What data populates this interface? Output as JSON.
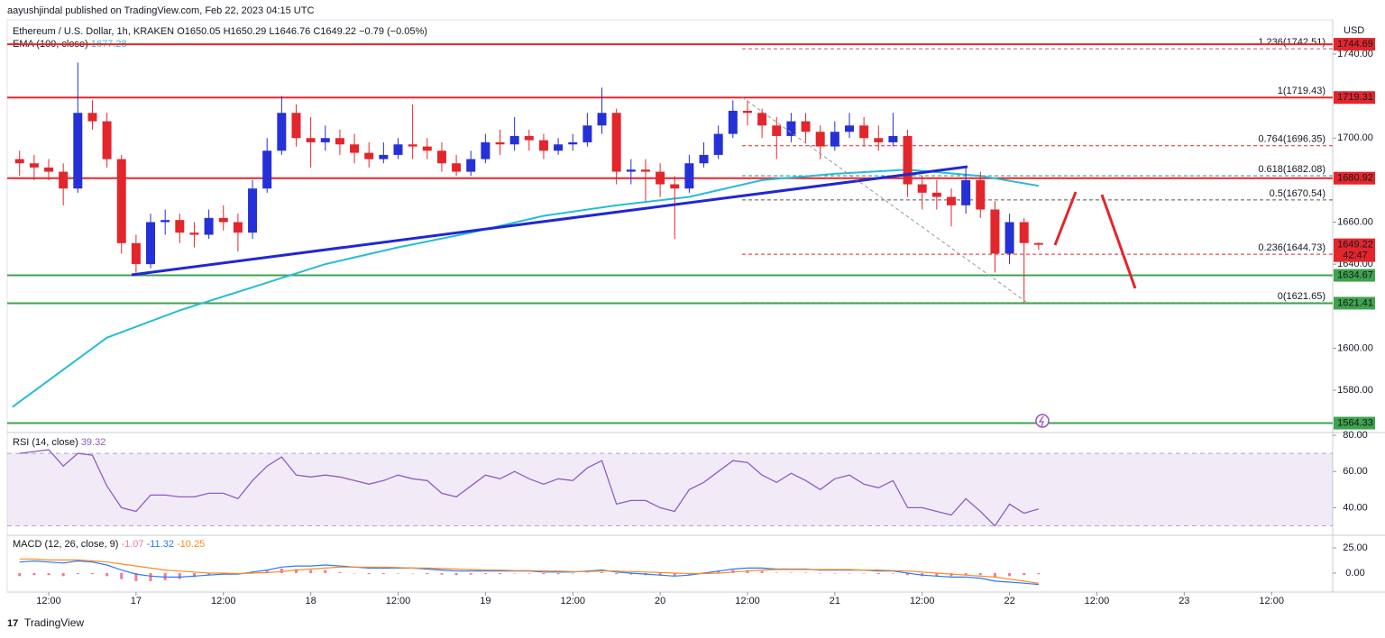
{
  "header": {
    "publisher": "aayushjindal published on TradingView.com, Feb 22, 2023 04:15 UTC",
    "symbol": "Ethereum / U.S. Dollar, 1h, KRAKEN",
    "open": "O1650.05",
    "high": "H1650.29",
    "low": "L1646.76",
    "close": "C1649.22",
    "change": "−0.79 (−0.05%)"
  },
  "chart_data": {
    "type": "candlestick",
    "currency": "USD",
    "up_color": "#2530d6",
    "down_color": "#e3262c",
    "x": [
      8,
      10,
      12,
      14,
      16,
      18,
      20,
      22,
      24,
      26,
      28,
      30,
      32,
      34,
      36,
      38,
      40,
      42,
      44,
      46,
      48,
      50,
      52,
      54,
      56,
      58,
      60,
      62,
      64,
      66,
      68,
      70,
      72,
      74,
      76,
      78,
      80,
      82,
      84,
      86,
      88,
      90,
      92,
      94,
      96,
      98,
      100,
      102,
      104,
      106,
      108,
      110,
      112,
      114,
      116,
      118,
      120,
      122,
      124,
      126,
      128,
      130,
      132,
      134,
      136,
      138,
      140,
      142,
      144,
      146,
      148
    ],
    "candles": [
      [
        1690,
        1694,
        1682,
        1688
      ],
      [
        1688,
        1692,
        1680,
        1686
      ],
      [
        1686,
        1690,
        1680,
        1684
      ],
      [
        1684,
        1688,
        1668,
        1676
      ],
      [
        1676,
        1736,
        1674,
        1712
      ],
      [
        1712,
        1718,
        1704,
        1708
      ],
      [
        1708,
        1712,
        1686,
        1690
      ],
      [
        1690,
        1692,
        1645,
        1650
      ],
      [
        1650,
        1654,
        1636,
        1640
      ],
      [
        1640,
        1664,
        1638,
        1660
      ],
      [
        1660,
        1666,
        1654,
        1661
      ],
      [
        1661,
        1664,
        1650,
        1655
      ],
      [
        1655,
        1660,
        1648,
        1654
      ],
      [
        1654,
        1666,
        1652,
        1662
      ],
      [
        1662,
        1668,
        1656,
        1660
      ],
      [
        1660,
        1664,
        1646,
        1655
      ],
      [
        1655,
        1680,
        1652,
        1676
      ],
      [
        1676,
        1700,
        1674,
        1694
      ],
      [
        1694,
        1720,
        1692,
        1712
      ],
      [
        1712,
        1716,
        1696,
        1700
      ],
      [
        1700,
        1710,
        1686,
        1698
      ],
      [
        1698,
        1706,
        1694,
        1700
      ],
      [
        1700,
        1704,
        1692,
        1697
      ],
      [
        1697,
        1702,
        1688,
        1693
      ],
      [
        1693,
        1698,
        1686,
        1690
      ],
      [
        1690,
        1698,
        1688,
        1692
      ],
      [
        1692,
        1700,
        1690,
        1697
      ],
      [
        1697,
        1716,
        1690,
        1696
      ],
      [
        1696,
        1700,
        1690,
        1694
      ],
      [
        1694,
        1698,
        1684,
        1688
      ],
      [
        1688,
        1692,
        1682,
        1684
      ],
      [
        1684,
        1694,
        1682,
        1690
      ],
      [
        1690,
        1702,
        1688,
        1698
      ],
      [
        1698,
        1704,
        1692,
        1697
      ],
      [
        1697,
        1710,
        1694,
        1701
      ],
      [
        1701,
        1704,
        1694,
        1699
      ],
      [
        1699,
        1702,
        1690,
        1694
      ],
      [
        1694,
        1700,
        1692,
        1697
      ],
      [
        1697,
        1702,
        1694,
        1698
      ],
      [
        1698,
        1712,
        1696,
        1706
      ],
      [
        1706,
        1724,
        1702,
        1712
      ],
      [
        1712,
        1714,
        1678,
        1684
      ],
      [
        1684,
        1690,
        1678,
        1685
      ],
      [
        1685,
        1690,
        1670,
        1684
      ],
      [
        1684,
        1688,
        1672,
        1678
      ],
      [
        1678,
        1682,
        1652,
        1676
      ],
      [
        1676,
        1692,
        1674,
        1688
      ],
      [
        1688,
        1698,
        1686,
        1692
      ],
      [
        1692,
        1706,
        1690,
        1702
      ],
      [
        1702,
        1718,
        1700,
        1713
      ],
      [
        1713,
        1718,
        1706,
        1712
      ],
      [
        1712,
        1714,
        1700,
        1706
      ],
      [
        1706,
        1710,
        1690,
        1701
      ],
      [
        1701,
        1712,
        1698,
        1708
      ],
      [
        1708,
        1712,
        1698,
        1703
      ],
      [
        1703,
        1706,
        1690,
        1696
      ],
      [
        1696,
        1708,
        1694,
        1703
      ],
      [
        1703,
        1712,
        1700,
        1706
      ],
      [
        1706,
        1710,
        1696,
        1700
      ],
      [
        1700,
        1706,
        1694,
        1698
      ],
      [
        1698,
        1712,
        1696,
        1701
      ],
      [
        1701,
        1704,
        1672,
        1678
      ],
      [
        1678,
        1682,
        1666,
        1674
      ],
      [
        1674,
        1680,
        1666,
        1672
      ],
      [
        1672,
        1676,
        1658,
        1668
      ],
      [
        1668,
        1686,
        1664,
        1680
      ],
      [
        1680,
        1684,
        1662,
        1666
      ],
      [
        1666,
        1670,
        1636,
        1645
      ],
      [
        1645,
        1664,
        1640,
        1660
      ],
      [
        1660,
        1662,
        1621.65,
        1650.05
      ],
      [
        1650.05,
        1650.29,
        1646.76,
        1649.22
      ]
    ],
    "xlim": [
      6.3,
      188.4
    ],
    "xticks": [
      {
        "value": 12,
        "label": "12:00"
      },
      {
        "value": 24,
        "label": "17"
      },
      {
        "value": 36,
        "label": "12:00"
      },
      {
        "value": 48,
        "label": "18"
      },
      {
        "value": 60,
        "label": "12:00"
      },
      {
        "value": 72,
        "label": "19"
      },
      {
        "value": 84,
        "label": "12:00"
      },
      {
        "value": 96,
        "label": "20"
      },
      {
        "value": 108,
        "label": "12:00"
      },
      {
        "value": 120,
        "label": "21"
      },
      {
        "value": 132,
        "label": "12:00"
      },
      {
        "value": 144,
        "label": "22"
      },
      {
        "value": 156,
        "label": "12:00"
      },
      {
        "value": 168,
        "label": "23"
      },
      {
        "value": 180,
        "label": "12:00"
      }
    ],
    "ylim": [
      1560.7,
      1756.3
    ],
    "yticks": [
      {
        "value": 1740,
        "label": "1740.00"
      },
      {
        "value": 1700,
        "label": "1700.00"
      },
      {
        "value": 1660,
        "label": "1660.00"
      },
      {
        "value": 1640,
        "label": "1640.00"
      },
      {
        "value": 1600,
        "label": "1600.00"
      },
      {
        "value": 1580,
        "label": "1580.00"
      }
    ],
    "ema": {
      "name": "EMA (100, close)",
      "color": "#26bcd6",
      "value_label": "1677.28",
      "x": [
        7,
        20,
        30,
        40,
        50,
        60,
        70,
        80,
        90,
        100,
        110,
        120,
        130,
        140,
        148
      ],
      "values": [
        1572,
        1605,
        1618,
        1629,
        1640,
        1648,
        1655,
        1663,
        1668,
        1672,
        1680,
        1683,
        1685,
        1682,
        1677.28
      ]
    },
    "levels": [
      {
        "value": 1744.69,
        "color": "#e3262c"
      },
      {
        "value": 1719.31,
        "color": "#e3262c"
      },
      {
        "value": 1680.92,
        "color": "#e3262c"
      },
      {
        "value": 1634.67,
        "color": "#3fa34d"
      },
      {
        "value": 1621.41,
        "color": "#3fa34d"
      },
      {
        "value": 1564.33,
        "color": "#3fa34d"
      }
    ],
    "fib": [
      {
        "label": "1.236(1742.51)",
        "value": 1742.51,
        "color": "#c2507a"
      },
      {
        "label": "1(1719.43)",
        "value": 1719.43,
        "color": "#9c4fc2"
      },
      {
        "label": "0.764(1696.35)",
        "value": 1696.35,
        "color": "#e3262c"
      },
      {
        "label": "0.618(1682.08)",
        "value": 1682.08,
        "color": "#1aa39a"
      },
      {
        "label": "0.5(1670.54)",
        "value": 1670.54,
        "color": "#555555"
      },
      {
        "label": "0.236(1644.73)",
        "value": 1644.73,
        "color": "#e3262c"
      },
      {
        "label": "0(1621.65)",
        "value": 1621.65,
        "color": "#777777"
      }
    ],
    "last_price": {
      "value": 1649.22,
      "countdown": "42:47",
      "color": "#e3262c"
    },
    "rsi": {
      "name": "RSI (14, close)",
      "value_label": "39.32",
      "color": "#8e5bc8",
      "band": [
        30,
        70
      ],
      "ylim": [
        25.8,
        80.5
      ],
      "yticks": [
        {
          "value": 80,
          "label": "80.00"
        },
        {
          "value": 60,
          "label": "60.00"
        },
        {
          "value": 40,
          "label": "40.00"
        }
      ],
      "values": [
        70,
        71,
        72,
        63,
        70,
        69,
        52,
        40,
        38,
        47,
        47,
        46,
        46,
        48,
        48,
        45,
        55,
        63,
        68,
        58,
        57,
        58,
        57,
        55,
        53,
        55,
        58,
        56,
        55,
        48,
        46,
        52,
        58,
        56,
        60,
        56,
        53,
        56,
        55,
        62,
        66,
        42,
        44,
        44,
        40,
        38,
        50,
        54,
        60,
        66,
        65,
        58,
        54,
        59,
        55,
        50,
        56,
        58,
        53,
        51,
        55,
        40,
        40,
        38,
        36,
        45,
        38,
        30,
        42,
        37,
        39.32
      ]
    },
    "macd": {
      "name": "MACD (12, 26, close, 9)",
      "ylim": [
        -17,
        35.7
      ],
      "yticks": [
        {
          "value": 25,
          "label": "25.00"
        },
        {
          "value": 0,
          "label": "0.00"
        }
      ],
      "histogram": {
        "color": "#f27a92",
        "value_label": "-1.07",
        "values": [
          -3,
          -2,
          -2,
          -3,
          -1,
          -1,
          -3,
          -6,
          -8,
          -8,
          -7,
          -6,
          -4,
          -2,
          -1,
          -0.5,
          1,
          2.5,
          4.5,
          4,
          3,
          3,
          1,
          0,
          -1,
          -1,
          -0.5,
          0,
          -1,
          -1.5,
          -2,
          -1.5,
          -1,
          -1,
          -0.5,
          -0.5,
          -1,
          -1,
          -0.5,
          0.5,
          1,
          -1,
          -1.5,
          -2,
          -2.5,
          -3,
          -1.5,
          0.5,
          2,
          3,
          3,
          2,
          0.5,
          0.5,
          0.5,
          -0.5,
          -0.5,
          -0.5,
          0,
          -1,
          -0.5,
          -2,
          -3,
          -3,
          -3,
          -2,
          -2,
          -4,
          -3,
          -2,
          -1.07
        ]
      },
      "macd": {
        "color": "#2979ff",
        "value_label": "-11.32",
        "values": [
          11,
          12,
          11,
          10,
          12,
          11,
          8,
          3,
          -1,
          -3,
          -4,
          -4,
          -3,
          -2,
          -1,
          -1,
          1,
          3,
          6,
          7,
          7,
          8,
          7,
          6,
          5,
          5,
          5,
          5,
          4,
          3,
          2,
          2,
          2,
          2,
          2,
          2,
          1,
          1,
          1,
          2,
          3,
          1,
          0,
          -1,
          -2,
          -3,
          -2,
          0,
          2,
          4,
          5,
          5,
          4,
          4,
          4,
          3,
          3,
          3,
          3,
          2,
          2,
          0,
          -2,
          -3,
          -4,
          -4,
          -5,
          -8,
          -9,
          -10,
          -11.32
        ]
      },
      "signal": {
        "color": "#ff8a1f",
        "value_label": "-10.25",
        "values": [
          14,
          14,
          13,
          13,
          13,
          12,
          11,
          9,
          7,
          5,
          3,
          2,
          1,
          0,
          0,
          -0.5,
          0,
          0.5,
          1.5,
          3,
          4,
          5,
          6,
          6,
          6,
          6,
          5.5,
          5,
          5,
          4.5,
          4,
          3.5,
          3,
          3,
          2.5,
          2.5,
          2,
          2,
          1.5,
          1.5,
          2,
          2,
          1.5,
          1,
          0.5,
          0,
          -0.5,
          -0.5,
          0,
          1,
          2,
          3,
          3.5,
          3.5,
          3.5,
          3.5,
          3.5,
          3.5,
          3,
          3,
          2.5,
          2,
          1,
          0,
          -1,
          -2,
          -3,
          -4,
          -6,
          -8,
          -10.25
        ]
      }
    }
  },
  "footer": {
    "brand": "TradingView"
  }
}
